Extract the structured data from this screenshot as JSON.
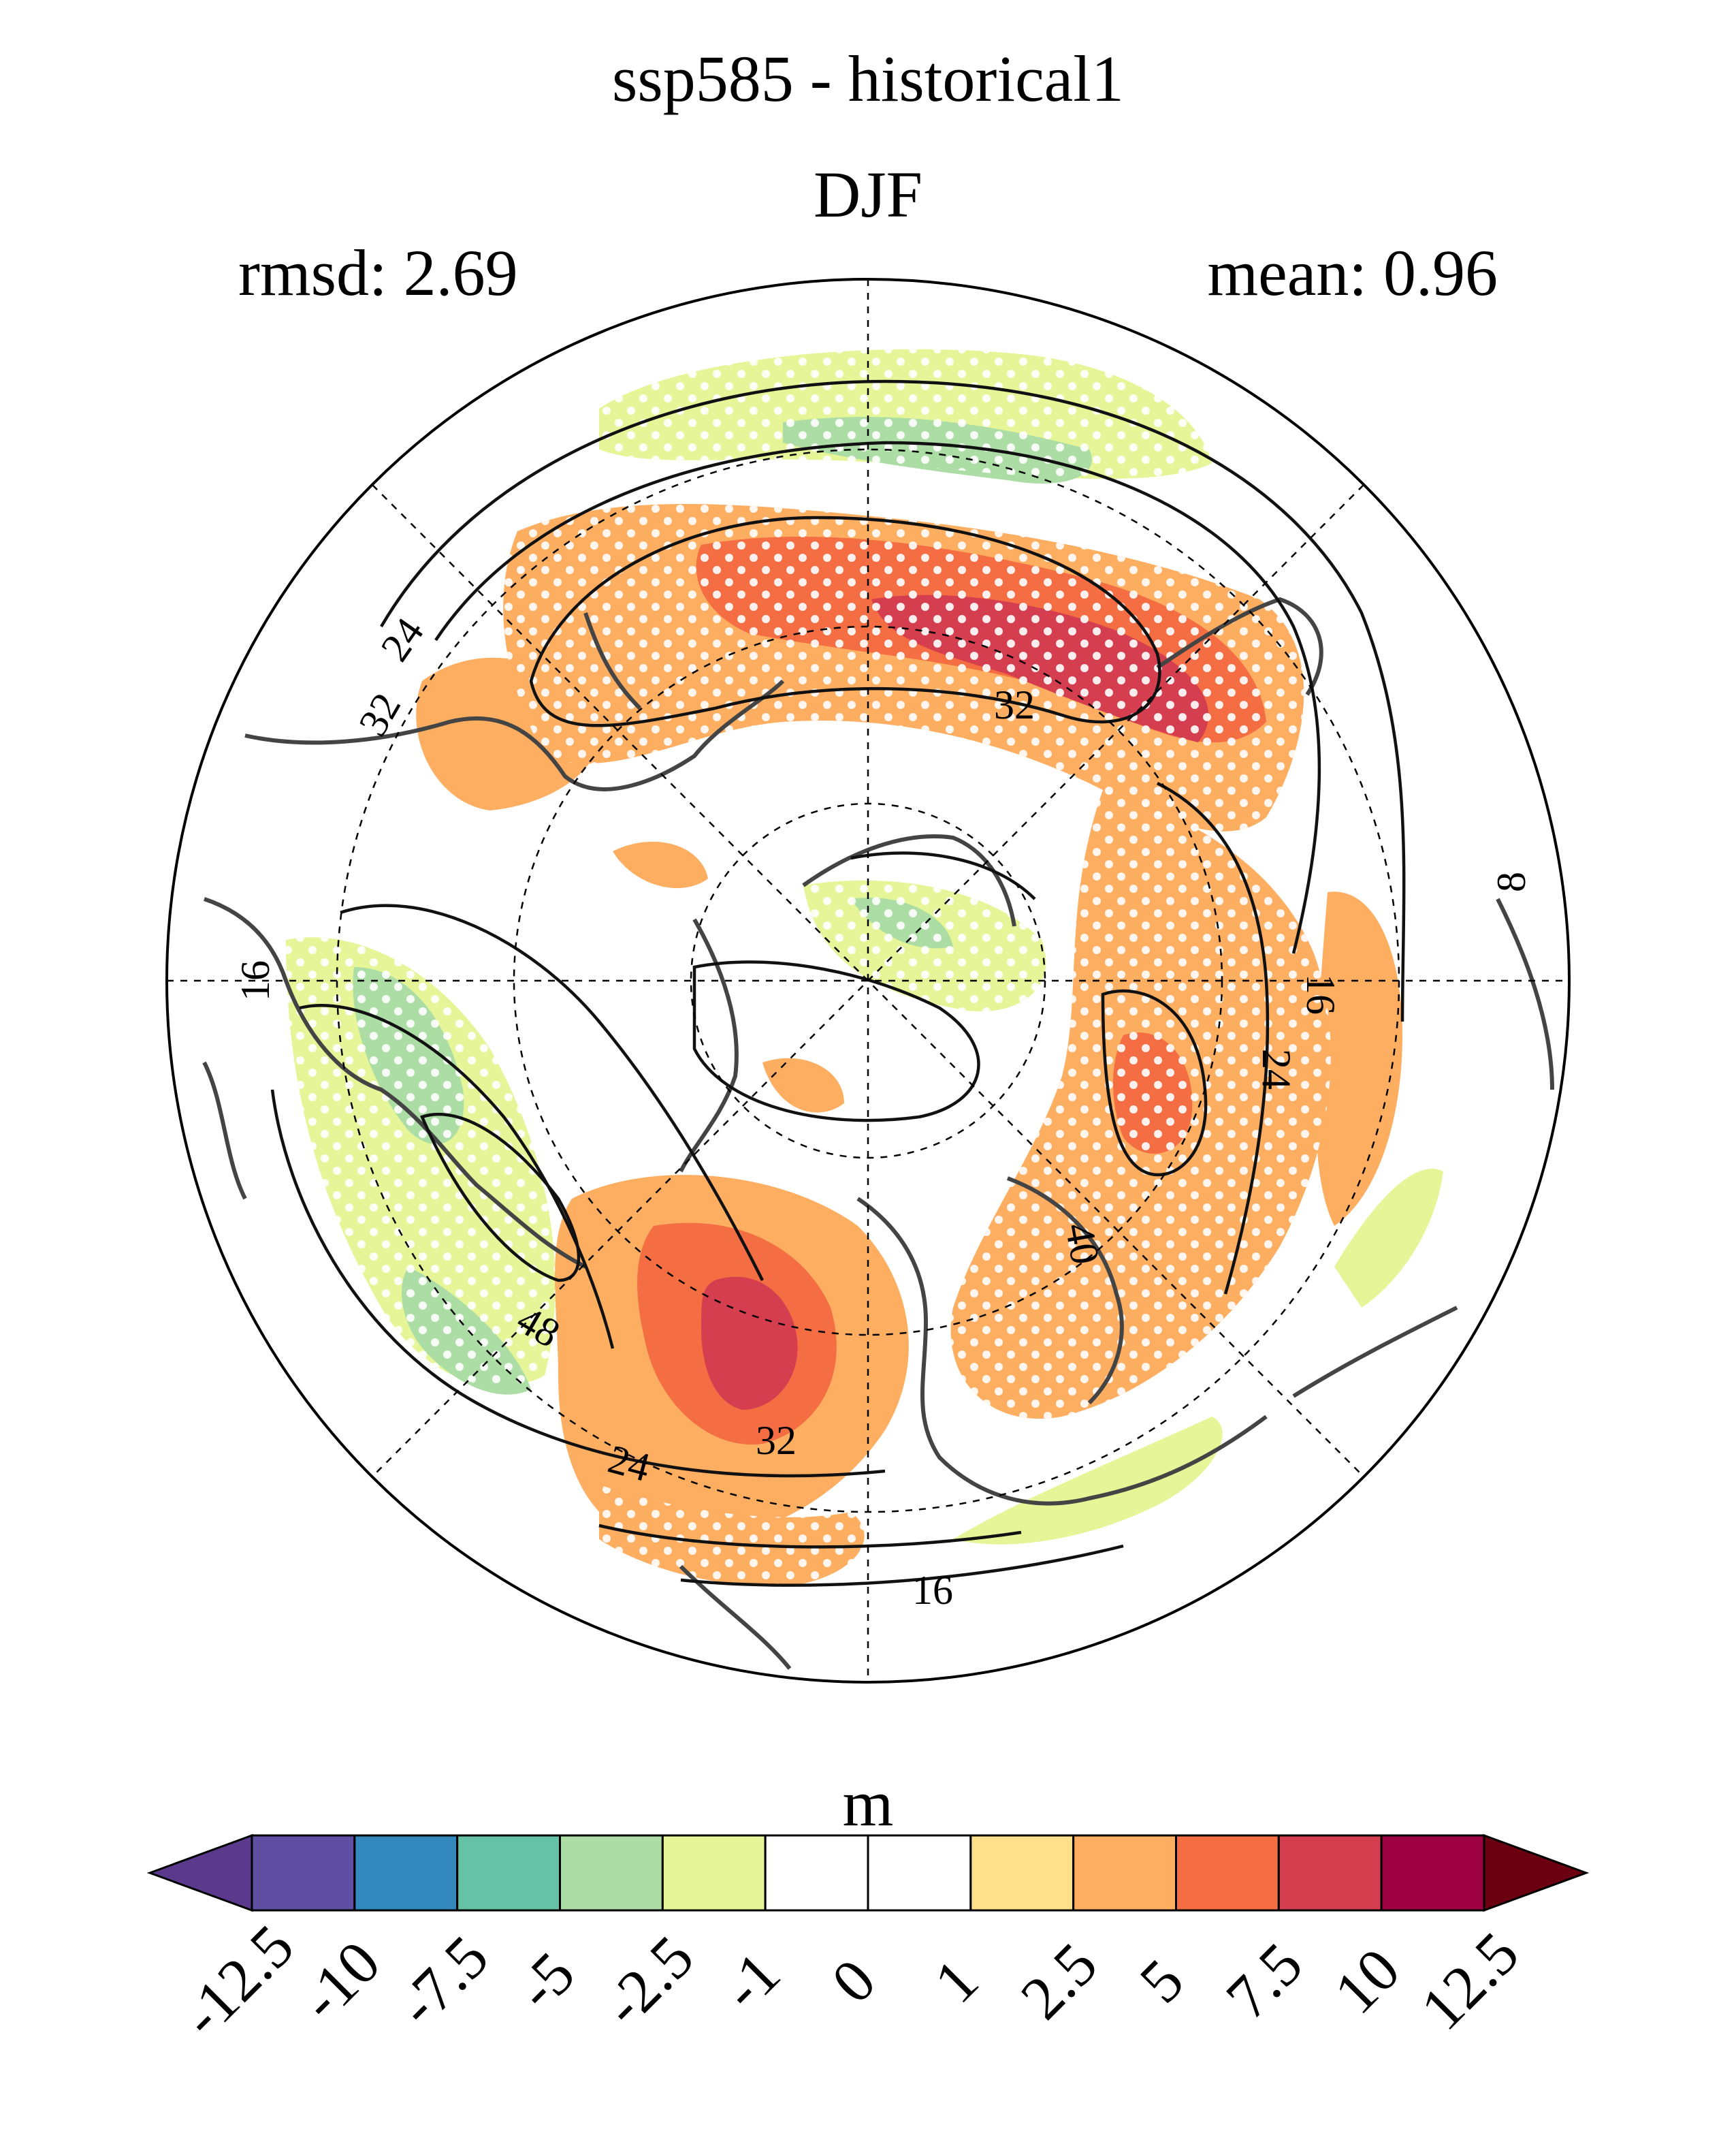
{
  "title": {
    "line1": "ssp585 - historical1",
    "line2": "DJF",
    "rmsd_text": "rmsd: 2.69",
    "mean_text": "mean: 0.96"
  },
  "map": {
    "projection": "north-polar-stereographic",
    "filled_field": "ssp585 minus historical1 difference",
    "contour_labels": [
      "24",
      "32",
      "32",
      "16",
      "16",
      "24",
      "40",
      "48",
      "24",
      "32",
      "16",
      "8"
    ],
    "stippling": "white dots mark significant areas"
  },
  "colorbar": {
    "units": "m",
    "tick_labels": [
      "-12.5",
      "-10",
      "-7.5",
      "-5",
      "-2.5",
      "-1",
      "0",
      "1",
      "2.5",
      "5",
      "7.5",
      "10",
      "12.5"
    ],
    "colors": [
      "#5e4fa2",
      "#3288bd",
      "#66c2a5",
      "#abdda4",
      "#e6f598",
      "#ffffff",
      "#ffffff",
      "#fee08b",
      "#fdae61",
      "#f46d43",
      "#d53e4f",
      "#9e0142"
    ],
    "under_color": "#5b3a8e",
    "over_color": "#6a0010"
  },
  "style": {
    "coast_color": "#444444",
    "contour_color": "#111111",
    "stipple_color": "#ffffff"
  }
}
